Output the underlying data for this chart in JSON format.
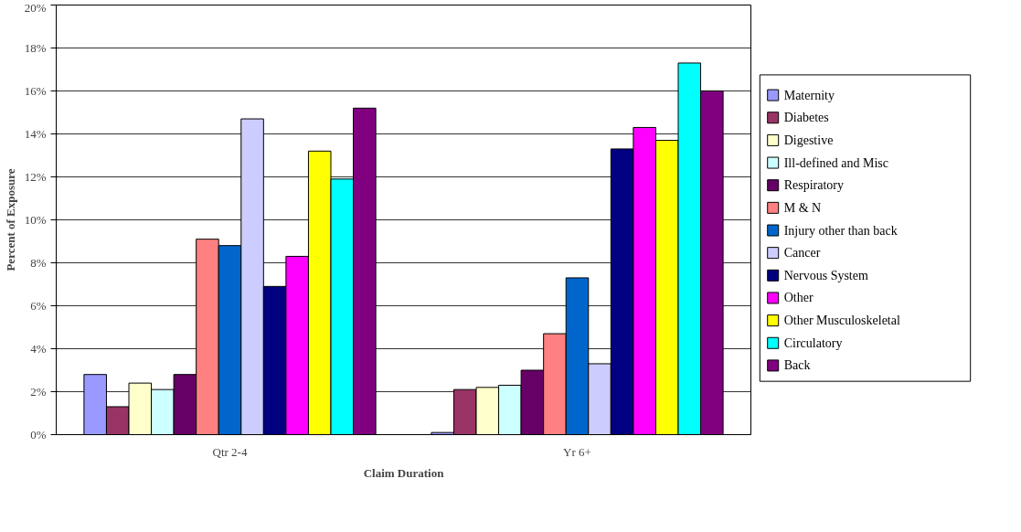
{
  "chart_data": {
    "type": "bar",
    "xlabel": "Claim Duration",
    "ylabel": "Percent of Exposure",
    "categories": [
      "Qtr 2-4",
      "Yr 6+"
    ],
    "ylim": [
      0,
      20
    ],
    "yticks": [
      {
        "value": 0,
        "label": "0%"
      },
      {
        "value": 2,
        "label": "2%"
      },
      {
        "value": 4,
        "label": "4%"
      },
      {
        "value": 6,
        "label": "6%"
      },
      {
        "value": 8,
        "label": "8%"
      },
      {
        "value": 10,
        "label": "10%"
      },
      {
        "value": 12,
        "label": "12%"
      },
      {
        "value": 14,
        "label": "14%"
      },
      {
        "value": 16,
        "label": "16%"
      },
      {
        "value": 18,
        "label": "18%"
      },
      {
        "value": 20,
        "label": "20%"
      }
    ],
    "grid": "y",
    "legend": "right",
    "series": [
      {
        "name": "Maternity",
        "color": "#9999ff",
        "values": [
          2.8,
          0.1
        ]
      },
      {
        "name": "Diabetes",
        "color": "#993366",
        "values": [
          1.3,
          2.1
        ]
      },
      {
        "name": "Digestive",
        "color": "#ffffcc",
        "values": [
          2.4,
          2.2
        ]
      },
      {
        "name": "Ill-defined and Misc",
        "color": "#ccffff",
        "values": [
          2.1,
          2.3
        ]
      },
      {
        "name": "Respiratory",
        "color": "#660066",
        "values": [
          2.8,
          3.0
        ]
      },
      {
        "name": "M & N",
        "color": "#ff8080",
        "values": [
          9.1,
          4.7
        ]
      },
      {
        "name": "Injury other than back",
        "color": "#0066cc",
        "values": [
          8.8,
          7.3
        ]
      },
      {
        "name": "Cancer",
        "color": "#ccccff",
        "values": [
          14.7,
          3.3
        ]
      },
      {
        "name": "Nervous System",
        "color": "#000080",
        "values": [
          6.9,
          13.3
        ]
      },
      {
        "name": "Other",
        "color": "#ff00ff",
        "values": [
          8.3,
          14.3
        ]
      },
      {
        "name": "Other Musculoskeletal",
        "color": "#ffff00",
        "values": [
          13.2,
          13.7
        ]
      },
      {
        "name": "Circulatory",
        "color": "#00ffff",
        "values": [
          11.9,
          17.3
        ]
      },
      {
        "name": "Back",
        "color": "#800080",
        "values": [
          15.2,
          16.0
        ]
      }
    ]
  }
}
